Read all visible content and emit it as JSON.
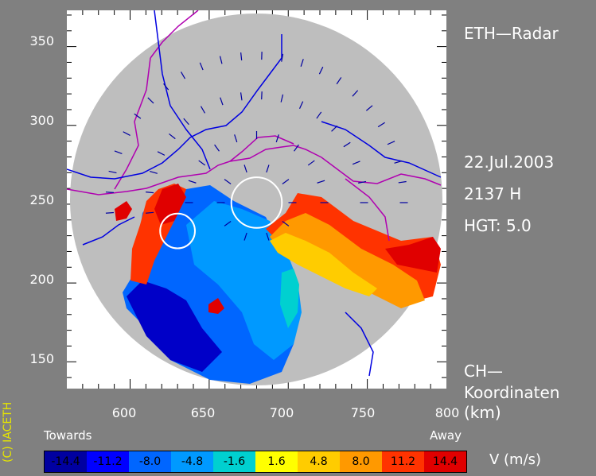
{
  "map": {
    "x_ticks": [
      "600",
      "650",
      "700",
      "750",
      "800"
    ],
    "y_ticks": [
      "350",
      "300",
      "250",
      "200",
      "150"
    ],
    "radar_name": "ETH—Radar",
    "date": "22.Jul.2003",
    "time": "2137 H",
    "height": "HGT: 5.0",
    "coord_line1": "CH—",
    "coord_line2": "Koordinaten",
    "coord_line3": "(km)",
    "copyright": "(C) IACETH",
    "markers": [
      {
        "x": 680,
        "y": 251,
        "r": 16
      },
      {
        "x": 630,
        "y": 233,
        "r": 11
      }
    ]
  },
  "legend": {
    "towards": "Towards",
    "away": "Away",
    "unit": "V  (m/s)",
    "scale": [
      {
        "label": "-14.4",
        "color": "#0000a0"
      },
      {
        "label": "-11.2",
        "color": "#0000ff"
      },
      {
        "label": "-8.0",
        "color": "#0066ff"
      },
      {
        "label": "-4.8",
        "color": "#0099ff"
      },
      {
        "label": "-1.6",
        "color": "#00d0d0"
      },
      {
        "label": "1.6",
        "color": "#ffff00"
      },
      {
        "label": "4.8",
        "color": "#ffcc00"
      },
      {
        "label": "8.0",
        "color": "#ff9900"
      },
      {
        "label": "11.2",
        "color": "#ff3300"
      },
      {
        "label": "14.4",
        "color": "#e00000"
      }
    ]
  }
}
